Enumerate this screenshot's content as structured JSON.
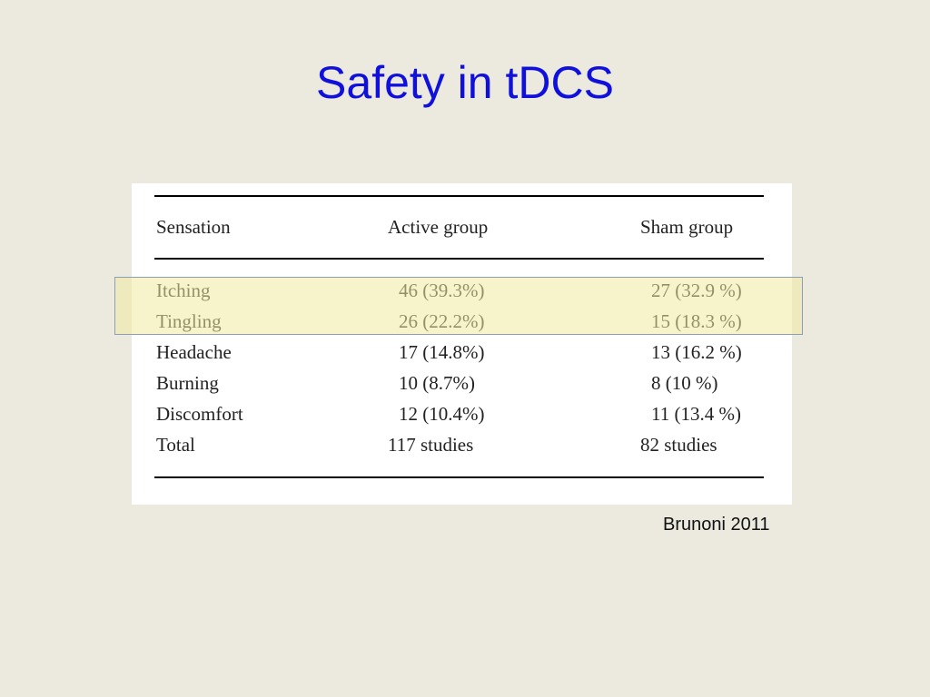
{
  "header": {
    "title": "Safety in tDCS"
  },
  "table": {
    "columns": [
      "Sensation",
      "Active group",
      "Sham group"
    ],
    "rows": [
      [
        "Itching",
        "46 (39.3%)",
        "27 (32.9 %)"
      ],
      [
        "Tingling",
        "26 (22.2%)",
        "15 (18.3 %)"
      ],
      [
        "Headache",
        "17 (14.8%)",
        "13 (16.2 %)"
      ],
      [
        "Burning",
        "10 (8.7%)",
        "8 (10 %)"
      ],
      [
        "Discomfort",
        "12 (10.4%)",
        "11 (13.4 %)"
      ],
      [
        "Total",
        "117 studies",
        "82 studies"
      ]
    ]
  },
  "citation": "Brunoni 2011"
}
